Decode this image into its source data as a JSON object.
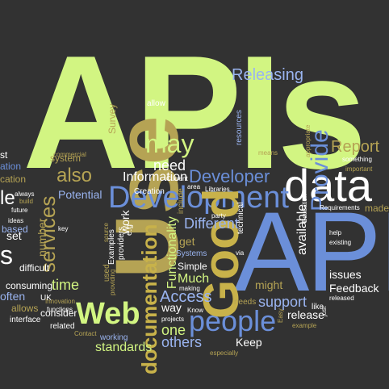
{
  "palette": {
    "background": "#323232",
    "lime": "#d2f582",
    "blue": "#6b8fd9",
    "white": "#ffffff",
    "olive": "#b5a354",
    "gold": "#c8b24a",
    "lightblue": "#9ab4f0"
  },
  "words": [
    {
      "text": "APIs",
      "color": "lime"
    },
    {
      "text": "API",
      "color": "blue"
    },
    {
      "text": "data",
      "color": "white"
    },
    {
      "text": "Use",
      "color": "olive"
    },
    {
      "text": "Development",
      "color": "blue"
    },
    {
      "text": "people",
      "color": "blue"
    },
    {
      "text": "Web",
      "color": "lime"
    },
    {
      "text": "Good",
      "color": "gold"
    },
    {
      "text": "may",
      "color": "lime"
    },
    {
      "text": "documentation",
      "color": "gold"
    },
    {
      "text": "Provide",
      "color": "blue"
    },
    {
      "text": "services",
      "color": "olive"
    },
    {
      "text": "Releasing",
      "color": "lightblue"
    },
    {
      "text": "Developer",
      "color": "blue"
    },
    {
      "text": "also",
      "color": "olive"
    },
    {
      "text": "Report",
      "color": "olive"
    },
    {
      "text": "need",
      "color": "white"
    },
    {
      "text": "Information",
      "color": "white"
    },
    {
      "text": "Different",
      "color": "lightblue"
    },
    {
      "text": "support",
      "color": "lightblue"
    },
    {
      "text": "time",
      "color": "lime"
    },
    {
      "text": "others",
      "color": "lightblue"
    },
    {
      "text": "standards",
      "color": "lime"
    },
    {
      "text": "Access",
      "color": "lightblue"
    },
    {
      "text": "Survey",
      "color": "olive"
    },
    {
      "text": "available",
      "color": "white"
    },
    {
      "text": "Functionality",
      "color": "lime"
    },
    {
      "text": "number",
      "color": "olive"
    },
    {
      "text": "work",
      "color": "white"
    },
    {
      "text": "issues",
      "color": "white"
    },
    {
      "text": "Feedback",
      "color": "white"
    },
    {
      "text": "release",
      "color": "white"
    },
    {
      "text": "Potential",
      "color": "lightblue"
    },
    {
      "text": "might",
      "color": "olive"
    },
    {
      "text": "Much",
      "color": "lime"
    },
    {
      "text": "way",
      "color": "white"
    },
    {
      "text": "one",
      "color": "lime"
    },
    {
      "text": "Keep",
      "color": "white"
    },
    {
      "text": "get",
      "color": "olive"
    },
    {
      "text": "Simple",
      "color": "white"
    },
    {
      "text": "system",
      "color": "olive"
    },
    {
      "text": "consuming",
      "color": "white"
    },
    {
      "text": "often",
      "color": "lightblue"
    },
    {
      "text": "consider",
      "color": "white"
    },
    {
      "text": "difficult",
      "color": "white"
    },
    {
      "text": "set",
      "color": "white"
    },
    {
      "text": "allows",
      "color": "olive"
    },
    {
      "text": "allow",
      "color": "white"
    },
    {
      "text": "made",
      "color": "olive"
    },
    {
      "text": "ation",
      "color": "blue"
    },
    {
      "text": "cation",
      "color": "olive"
    },
    {
      "text": "st",
      "color": "white"
    },
    {
      "text": "le",
      "color": "white"
    },
    {
      "text": "s",
      "color": "white"
    },
    {
      "text": "Examples",
      "color": "white"
    },
    {
      "text": "providers",
      "color": "white"
    },
    {
      "text": "e.g",
      "color": "white"
    },
    {
      "text": "Systems",
      "color": "lightblue"
    },
    {
      "text": "include",
      "color": "olive"
    },
    {
      "text": "resources",
      "color": "lightblue"
    },
    {
      "text": "technical",
      "color": "white"
    },
    {
      "text": "Education",
      "color": "white"
    },
    {
      "text": "Creation",
      "color": "white"
    },
    {
      "text": "Current",
      "color": "white"
    },
    {
      "text": "area",
      "color": "white"
    },
    {
      "text": "Libraries",
      "color": "white"
    },
    {
      "text": "means",
      "color": "olive"
    },
    {
      "text": "appropriate",
      "color": "olive"
    },
    {
      "text": "something",
      "color": "white"
    },
    {
      "text": "important",
      "color": "olive"
    },
    {
      "text": "Requirements",
      "color": "white"
    },
    {
      "text": "commercial",
      "color": "olive"
    },
    {
      "text": "always",
      "color": "white"
    },
    {
      "text": "build",
      "color": "olive"
    },
    {
      "text": "ideas",
      "color": "white"
    },
    {
      "text": "based",
      "color": "lightblue"
    },
    {
      "text": "future",
      "color": "white"
    },
    {
      "text": "used",
      "color": "olive"
    },
    {
      "text": "UK",
      "color": "white"
    },
    {
      "text": "related",
      "color": "white"
    },
    {
      "text": "functions",
      "color": "white"
    },
    {
      "text": "interface",
      "color": "white"
    },
    {
      "text": "Contact",
      "color": "olive"
    },
    {
      "text": "working",
      "color": "lightblue"
    },
    {
      "text": "projects",
      "color": "white"
    },
    {
      "text": "making",
      "color": "white"
    },
    {
      "text": "Know",
      "color": "white"
    },
    {
      "text": "needs",
      "color": "olive"
    },
    {
      "text": "especially",
      "color": "olive"
    },
    {
      "text": "Easy",
      "color": "olive"
    },
    {
      "text": "example",
      "color": "olive"
    },
    {
      "text": "released",
      "color": "white"
    },
    {
      "text": "like",
      "color": "white"
    },
    {
      "text": "help",
      "color": "white"
    },
    {
      "text": "existing",
      "color": "white"
    },
    {
      "text": "party",
      "color": "white"
    },
    {
      "text": "via",
      "color": "white"
    },
    {
      "text": "just",
      "color": "white"
    },
    {
      "text": "source",
      "color": "olive"
    },
    {
      "text": "providing",
      "color": "olive"
    },
    {
      "text": "Innovation",
      "color": "olive"
    },
    {
      "text": "key",
      "color": "white"
    }
  ]
}
